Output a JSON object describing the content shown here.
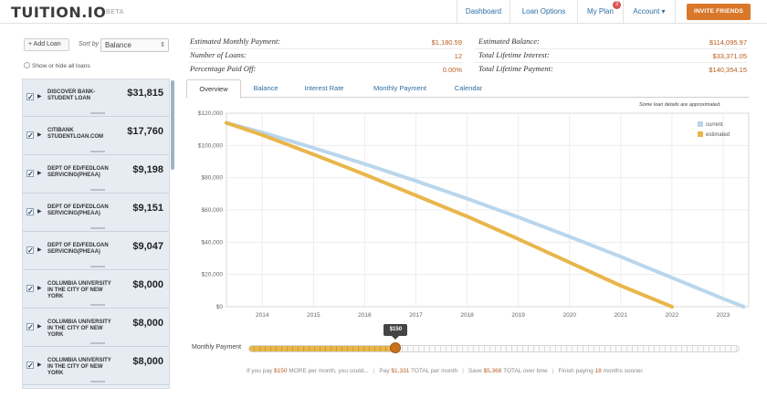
{
  "header": {
    "logo": "TUITION.IO",
    "badge": "BETA",
    "nav": [
      {
        "label": "Dashboard",
        "name": "nav-dashboard"
      },
      {
        "label": "Loan Options",
        "name": "nav-loan-options"
      },
      {
        "label": "My Plan",
        "name": "nav-my-plan",
        "badge": "3"
      },
      {
        "label": "Account ▾",
        "name": "nav-account"
      }
    ],
    "invite_label": "INVITE FRIENDS"
  },
  "sidebar": {
    "add_loan": "+ Add Loan",
    "sort_by_label": "Sort by",
    "sort_value": "Balance",
    "show_hide": "Show or hide all loans",
    "loans": [
      {
        "name": "DISCOVER BANK-STUDENT LOAN",
        "amount": "$31,815"
      },
      {
        "name": "CITIBANK STUDENTLOAN.COM",
        "amount": "$17,760"
      },
      {
        "name": "DEPT OF ED/FEDLOAN SERVICING(PHEAA)",
        "amount": "$9,198"
      },
      {
        "name": "DEPT OF ED/FEDLOAN SERVICING(PHEAA)",
        "amount": "$9,151"
      },
      {
        "name": "DEPT OF ED/FEDLOAN SERVICING(PHEAA)",
        "amount": "$9,047"
      },
      {
        "name": "COLUMBIA UNIVERSITY IN THE CITY OF NEW YORK",
        "amount": "$8,000"
      },
      {
        "name": "COLUMBIA UNIVERSITY IN THE CITY OF NEW YORK",
        "amount": "$8,000"
      },
      {
        "name": "COLUMBIA UNIVERSITY IN THE CITY OF NEW YORK",
        "amount": "$8,000"
      }
    ]
  },
  "summary": {
    "left": [
      {
        "label": "Estimated Monthly Payment:",
        "value": "$1,180.59"
      },
      {
        "label": "Number of Loans:",
        "value": "12"
      },
      {
        "label": "Percentage Paid Off:",
        "value": "0.00%"
      }
    ],
    "right": [
      {
        "label": "Estimated Balance:",
        "value": "$114,095.97"
      },
      {
        "label": "Total Lifetime Interest:",
        "value": "$33,371.05"
      },
      {
        "label": "Total Lifetime Payment:",
        "value": "$140,354.15"
      }
    ]
  },
  "tabs": [
    "Overview",
    "Balance",
    "Interest Rate",
    "Monthly Payment",
    "Calendar"
  ],
  "active_tab": "Overview",
  "approx_note": "Some loan details are approximated.",
  "colors": {
    "current": "#b9d6ec",
    "estimated": "#e8b64a",
    "accent": "#d9782a",
    "link": "#2e6ea3"
  },
  "chart_data": {
    "type": "line",
    "y_ticks": [
      "$0",
      "$20,000",
      "$40,000",
      "$60,000",
      "$80,000",
      "$100,000",
      "$120,000"
    ],
    "x_ticks": [
      "2014",
      "2015",
      "2016",
      "2017",
      "2018",
      "2019",
      "2020",
      "2021",
      "2022",
      "2023"
    ],
    "ylim": [
      0,
      120000
    ],
    "xlim": [
      2013.3,
      2023.5
    ],
    "legend_position": "top-right",
    "grid": true,
    "series": [
      {
        "name": "current",
        "color": "#b9d6ec",
        "x": [
          2013.3,
          2014,
          2015,
          2016,
          2017,
          2018,
          2019,
          2020,
          2021,
          2022,
          2023,
          2023.4
        ],
        "y": [
          114000,
          108000,
          98500,
          88500,
          78000,
          67000,
          55500,
          43500,
          31000,
          18000,
          5000,
          0
        ]
      },
      {
        "name": "estimated",
        "color": "#e8b64a",
        "x": [
          2013.3,
          2014,
          2015,
          2016,
          2017,
          2018,
          2019,
          2020,
          2021,
          2022
        ],
        "y": [
          114000,
          106500,
          94500,
          82000,
          69000,
          56000,
          42000,
          27500,
          13000,
          0
        ]
      }
    ]
  },
  "slider": {
    "label": "Monthly Payment",
    "value": "$150",
    "position_fraction": 0.3
  },
  "info": {
    "p1": "If you pay ",
    "amt": "$150",
    "p2": " MORE per month, you could...",
    "pay_pre": "Pay ",
    "pay_amt": "$1,331",
    "pay_post": " TOTAL per month",
    "save_pre": "Save ",
    "save_amt": "$5,368",
    "save_post": " TOTAL over time",
    "finish_pre": "Finish paying ",
    "finish_amt": "18",
    "finish_post": " months sooner."
  }
}
